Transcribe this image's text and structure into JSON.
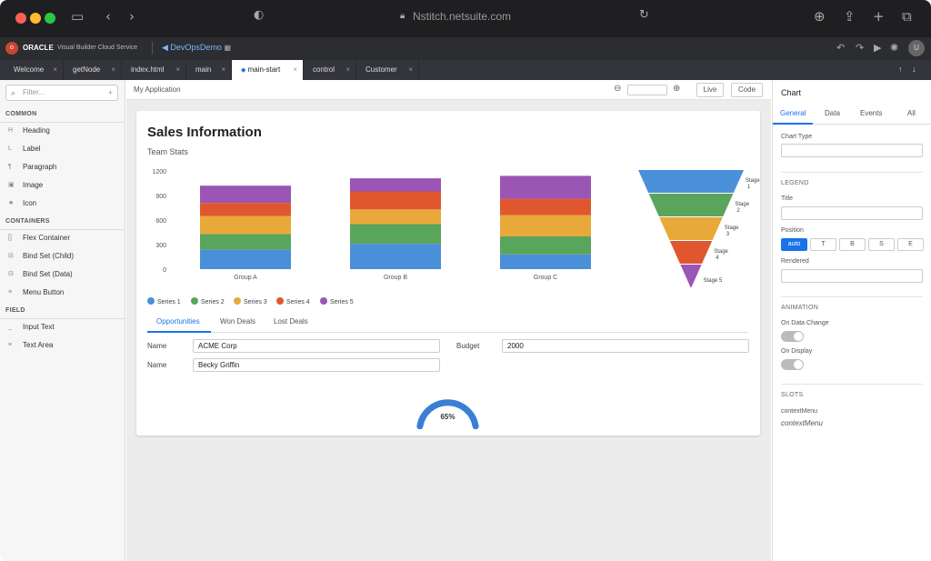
{
  "browser": {
    "url": "Nstitch.netsuite.com"
  },
  "ide": {
    "brand": "ORACLE",
    "service": "Visual Builder Cloud Service",
    "project": "DevOpsDemo",
    "user_initial": "U"
  },
  "tabs": [
    {
      "label": "Welcome"
    },
    {
      "label": "getNode"
    },
    {
      "label": "index.html"
    },
    {
      "label": "main"
    },
    {
      "label": "main-start"
    },
    {
      "label": "control"
    },
    {
      "label": "Customer"
    }
  ],
  "palette": {
    "filter_placeholder": "Filter...",
    "sections": {
      "common": "COMMON",
      "containers": "CONTAINERS",
      "field": "FIELD"
    },
    "common": [
      {
        "icon": "H",
        "label": "Heading"
      },
      {
        "icon": "L",
        "label": "Label"
      },
      {
        "icon": "¶",
        "label": "Paragraph"
      },
      {
        "icon": "▣",
        "label": "Image"
      },
      {
        "icon": "★",
        "label": "Icon"
      }
    ],
    "containers": [
      {
        "icon": "[]",
        "label": "Flex Container"
      },
      {
        "icon": "⊟",
        "label": "Bind Set (Child)"
      },
      {
        "icon": "⊟",
        "label": "Bind Set (Data)"
      },
      {
        "icon": "≡",
        "label": "Menu Button"
      }
    ],
    "field": [
      {
        "icon": "_",
        "label": "Input Text"
      },
      {
        "icon": "≡",
        "label": "Text Area"
      }
    ]
  },
  "canvas": {
    "app_title": "My Application",
    "live_label": "Live",
    "code_label": "Code"
  },
  "page": {
    "title": "Sales Information",
    "subtitle": "Team Stats",
    "subtabs": [
      "Opportunities",
      "Won Deals",
      "Lost Deals"
    ],
    "form": {
      "name_label": "Name",
      "name_value": "ACME Corp",
      "budget_label": "Budget",
      "budget_value": "2000",
      "name2_label": "Name",
      "name2_value": "Becky Griffin"
    },
    "gauge_value": "65%"
  },
  "chart_data": [
    {
      "type": "bar",
      "stacked": true,
      "categories": [
        "Group A",
        "Group B",
        "Group C"
      ],
      "ylim": [
        0,
        1200
      ],
      "yticks": [
        0,
        300,
        600,
        900,
        1200
      ],
      "series": [
        {
          "name": "Series 1",
          "color": "#4a90d9",
          "values": [
            240,
            310,
            180
          ]
        },
        {
          "name": "Series 2",
          "color": "#5aa55c",
          "values": [
            190,
            240,
            220
          ]
        },
        {
          "name": "Series 3",
          "color": "#e8a93a",
          "values": [
            220,
            180,
            260
          ]
        },
        {
          "name": "Series 4",
          "color": "#e0572f",
          "values": [
            160,
            220,
            200
          ]
        },
        {
          "name": "Series 5",
          "color": "#9b55b5",
          "values": [
            210,
            160,
            280
          ]
        }
      ],
      "legend_position": "bottom-left"
    },
    {
      "type": "funnel",
      "stages": [
        {
          "label": "Stage 1",
          "color": "#4a90d9"
        },
        {
          "label": "Stage 2",
          "color": "#5aa55c"
        },
        {
          "label": "Stage 3",
          "color": "#e8a93a"
        },
        {
          "label": "Stage 4",
          "color": "#e0572f"
        },
        {
          "label": "Stage 5",
          "color": "#9b55b5"
        }
      ]
    },
    {
      "type": "gauge",
      "value": 65,
      "max": 100,
      "color": "#3a7fd5"
    }
  ],
  "properties": {
    "title": "Chart",
    "tabs": [
      "General",
      "Data",
      "Events",
      "All"
    ],
    "chart_type_label": "Chart Type",
    "legend_section": "LEGEND",
    "title_label": "Title",
    "position_label": "Position",
    "positions": [
      "auto",
      "T",
      "B",
      "S",
      "E"
    ],
    "rendered_label": "Rendered",
    "animation_section": "ANIMATION",
    "on_data_change": "On Data Change",
    "on_display": "On Display",
    "slots_section": "SLOTS",
    "slot_name": "contextMenu",
    "slot_value": "contextMenu"
  }
}
